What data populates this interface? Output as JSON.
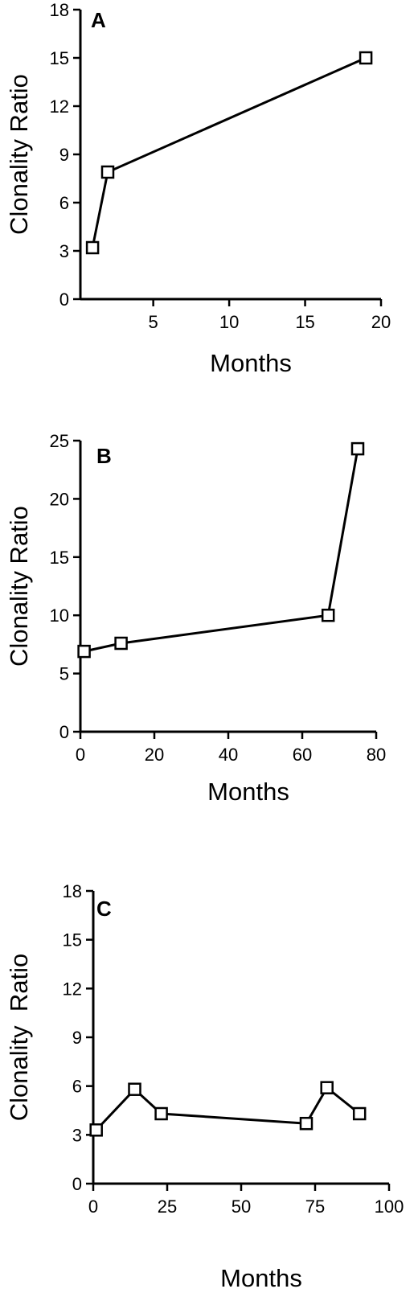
{
  "chart_data": [
    {
      "type": "line",
      "panel": "A",
      "xlabel": "Months",
      "ylabel": "Clonality Ratio",
      "xlim": [
        0.2,
        20
      ],
      "ylim": [
        0,
        18
      ],
      "xticks": [
        5,
        10,
        15,
        20
      ],
      "yticks": [
        0,
        3,
        6,
        9,
        12,
        15,
        18
      ],
      "x": [
        1,
        2,
        19
      ],
      "y": [
        3.2,
        7.9,
        15
      ]
    },
    {
      "type": "line",
      "panel": "B",
      "xlabel": "Months",
      "ylabel": "Clonality Ratio",
      "xlim": [
        0,
        80
      ],
      "ylim": [
        0,
        25
      ],
      "xticks": [
        0,
        20,
        40,
        60,
        80
      ],
      "yticks": [
        0,
        5,
        10,
        15,
        20,
        25
      ],
      "x": [
        1,
        11,
        67,
        75
      ],
      "y": [
        6.9,
        7.6,
        10,
        24.3
      ]
    },
    {
      "type": "line",
      "panel": "C",
      "xlabel": "Months",
      "ylabel": "Clonality  Ratio",
      "xlim": [
        0,
        100
      ],
      "ylim": [
        0,
        18
      ],
      "xticks": [
        0,
        25,
        50,
        75,
        100
      ],
      "yticks": [
        0,
        3,
        6,
        9,
        12,
        15,
        18
      ],
      "x": [
        1,
        14,
        23,
        72,
        79,
        90
      ],
      "y": [
        3.3,
        5.8,
        4.3,
        3.7,
        5.9,
        4.3
      ]
    }
  ]
}
